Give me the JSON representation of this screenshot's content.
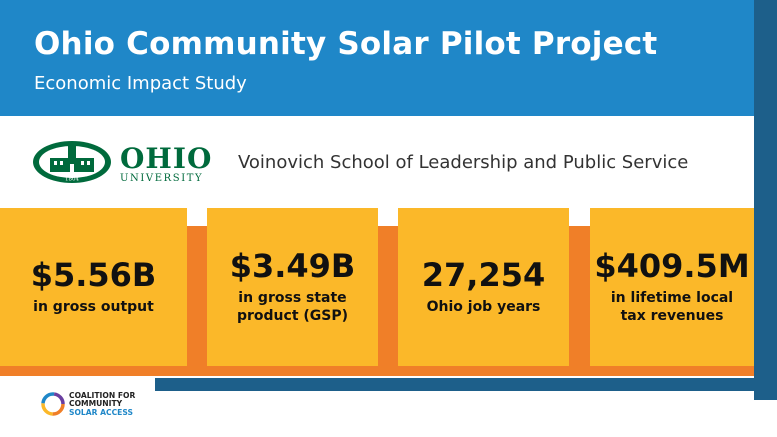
{
  "header": {
    "title": "Ohio Community Solar Pilot Project",
    "subtitle": "Economic Impact Study"
  },
  "university": {
    "name": "OHIO",
    "subname": "UNIVERSITY",
    "seal_year": "1804",
    "school": "Voinovich School of Leadership and Public Service"
  },
  "stats": [
    {
      "value": "$5.56B",
      "label": "in gross output"
    },
    {
      "value": "$3.49B",
      "label": "in gross state product (GSP)"
    },
    {
      "value": "27,254",
      "label": "Ohio job years"
    },
    {
      "value": "$409.5M",
      "label": "in lifetime local tax revenues"
    }
  ],
  "coalition": {
    "line1": "COALITION FOR",
    "line2": "COMMUNITY",
    "line3": "SOLAR ACCESS"
  },
  "colors": {
    "header_blue": "#1f87c8",
    "navy_accent": "#1d5f8a",
    "card_yellow": "#fbb829",
    "band_orange": "#f07f28",
    "ohio_green": "#006a3c"
  }
}
